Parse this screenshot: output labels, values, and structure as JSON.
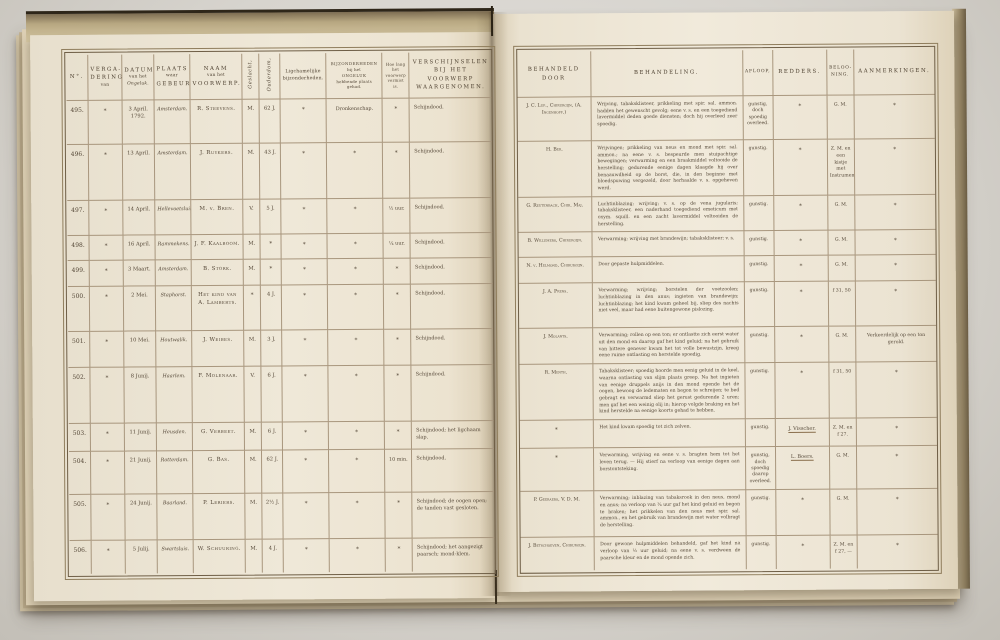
{
  "table": {
    "columns": [
      {
        "id": "no",
        "lines": [
          "N°."
        ]
      },
      {
        "id": "vergadering",
        "lines": [
          "VERGA-",
          "DERING",
          "van"
        ]
      },
      {
        "id": "datum",
        "lines": [
          "DATUM",
          "van het",
          "Ongeluk."
        ]
      },
      {
        "id": "plaats",
        "lines": [
          "PLAATS",
          "waar",
          "GEBEURD."
        ]
      },
      {
        "id": "naam",
        "lines": [
          "NAAM",
          "van het",
          "VOORWERP."
        ]
      },
      {
        "id": "geslacht",
        "lines": [
          "Geslacht,"
        ],
        "rotated": true
      },
      {
        "id": "ouderdom",
        "lines": [
          "Ouderdom,"
        ],
        "rotated": true
      },
      {
        "id": "ligchamelijke",
        "lines": [
          "Ligchamelijke",
          "bijzonderheden."
        ]
      },
      {
        "id": "bijzonderheden",
        "lines": [
          "BIJZONDERHEDEN",
          "bij het",
          "ONGELUK",
          "hebbende plaats",
          "gehad."
        ]
      },
      {
        "id": "hoelang",
        "lines": [
          "Hoe lang",
          "het",
          "voorwerp",
          "vermist",
          "is."
        ]
      },
      {
        "id": "verschijnselen",
        "lines": [
          "VERSCHIJNSELEN",
          "BIJ HET",
          "VOORWERP WAARGENOMEN."
        ]
      },
      {
        "id": "behandeld_door",
        "lines": [
          "BEHANDELD",
          "DOOR"
        ]
      },
      {
        "id": "behandeling",
        "lines": [
          "BEHANDELING."
        ]
      },
      {
        "id": "afloop",
        "lines": [
          "AFLOOP,"
        ]
      },
      {
        "id": "redders",
        "lines": [
          "REDDERS."
        ]
      },
      {
        "id": "belooning",
        "lines": [
          "BELOO-",
          "NING."
        ]
      },
      {
        "id": "aanmerkingen",
        "lines": [
          "AANMERKINGEN."
        ]
      }
    ],
    "rows": [
      {
        "no": "495.",
        "vergadering": "*",
        "datum": "3 April. 1792.",
        "plaats": "Amsterdam.",
        "naam": "R. Steevens.",
        "geslacht": "M.",
        "ouderdom": "62 J.",
        "ligchamelijke": "*",
        "bijzonderheden": "Dronkenschap.",
        "hoelang": "*",
        "verschijnselen": "Schijndood.",
        "behandeld_door": "J. C. Lup., Chirurgijn, (A. Ingenhoff.)",
        "behandeling": "Wrijving, tabaksklisteer, prikkeling met spir. sal. ammon. hadden het gewenscht gevolg; eene v. s. en een toegediend lavermiddel deden goede diensten; doch hij overleed zeer spoedig.",
        "afloop": "gunstig, doch spoedig overleed.",
        "redders": "*",
        "belooning": "G. M.",
        "aanmerkingen": "*"
      },
      {
        "no": "496.",
        "vergadering": "*",
        "datum": "13 April.",
        "plaats": "Amsterdam.",
        "naam": "J. Ruykers.",
        "geslacht": "M.",
        "ouderdom": "43 J.",
        "ligchamelijke": "*",
        "bijzonderheden": "*",
        "hoelang": "*",
        "verschijnselen": "Schijndood.",
        "behandeld_door": "H. Ber.",
        "behandeling": "Wrijvingen; prikkeling van neus en mond met spir. sal. ammon.; na eene v. s. bespeurde men stuipachtige bewegingen; verwarming en een braakmiddel voltooide de herstelling; gedurende eenige dagen klaagde hij over benaauwdheid op de borst, die, in den beginne met bloedspuwing vergezeld, door herhaalde v. s. opgeheven werd.",
        "afloop": "gunstig.",
        "redders": "*",
        "belooning": "Z. M. en een kistje met Instrumenten.",
        "aanmerkingen": "*"
      },
      {
        "no": "497.",
        "vergadering": "*",
        "datum": "14 April.",
        "plaats": "Hellevoetsluis.",
        "naam": "M. v. Bren.",
        "geslacht": "V.",
        "ouderdom": "5 J.",
        "ligchamelijke": "*",
        "bijzonderheden": "*",
        "hoelang": "½ uur.",
        "verschijnselen": "Schijndood.",
        "behandeld_door": "G. Reutenbach, Chir. Maj.",
        "behandeling": "Luchtinblazing; wrijving; v. s. op de vena jugularis; tabaksklisteer, een naderhand toegediend emeticum met oxym. squill. en een zacht lavermiddel voltooiden de herstelling.",
        "afloop": "gunstig.",
        "redders": "*",
        "belooning": "G. M.",
        "aanmerkingen": "*"
      },
      {
        "no": "498.",
        "vergadering": "*",
        "datum": "16 April.",
        "plaats": "Rammekens.",
        "naam": "J. F. Kaalboom.",
        "geslacht": "M.",
        "ouderdom": "*",
        "ligchamelijke": "*",
        "bijzonderheden": "*",
        "hoelang": "¼ uur.",
        "verschijnselen": "Schijndood.",
        "behandeld_door": "B. Willemers, Chirurgijn.",
        "behandeling": "Verwarming; wrijving met brandewijn; tabaksklisteer; v. s.",
        "afloop": "gunstig.",
        "redders": "*",
        "belooning": "G. M.",
        "aanmerkingen": "*"
      },
      {
        "no": "499.",
        "vergadering": "*",
        "datum": "3 Maart.",
        "plaats": "Amsterdam.",
        "naam": "B. Stork.",
        "geslacht": "M.",
        "ouderdom": "*",
        "ligchamelijke": "*",
        "bijzonderheden": "*",
        "hoelang": "*",
        "verschijnselen": "Schijndood.",
        "behandeld_door": "N. v. Helmond, Chirurgijn.",
        "behandeling": "Door gepaste hulpmiddelen.",
        "afloop": "gunstig.",
        "redders": "*",
        "belooning": "G. M.",
        "aanmerkingen": "*"
      },
      {
        "no": "500.",
        "vergadering": "*",
        "datum": "2 Mei.",
        "plaats": "Staphorst.",
        "naam": "Het kind van A. Lamberts.",
        "geslacht": "*",
        "ouderdom": "4 J.",
        "ligchamelijke": "*",
        "bijzonderheden": "*",
        "hoelang": "*",
        "verschijnselen": "Schijndood.",
        "behandeld_door": "J. A. Prens.",
        "behandeling": "Verwarming; wrijving; borstelen der voetzoolen; luchtinblazing in den anus; ingieten van brandewijn; luchtinblazing; het kind kwam geheel bij, sliep des nachts niet veel, maar had eene buitengewone pislozing.",
        "afloop": "gunstig.",
        "redders": "*",
        "belooning": "f 31, 50",
        "aanmerkingen": "*"
      },
      {
        "no": "501.",
        "vergadering": "*",
        "datum": "10 Mei.",
        "plaats": "Houtwalik.",
        "naam": "J. Weibes.",
        "geslacht": "M.",
        "ouderdom": "3 J.",
        "ligchamelijke": "*",
        "bijzonderheden": "*",
        "hoelang": "*",
        "verschijnselen": "Schijndood.",
        "behandeld_door": "J. Molants.",
        "behandeling": "Verwarming; rollen op een ton; er ontlastte zich eerst water uit den mond en daarop gaf het kind geluid; na het gebruik van bittere genever kwam het tot volle bewustzijn, kreeg eene ruime ontlasting en herstelde spoedig.",
        "afloop": "gunstig.",
        "redders": "*",
        "belooning": "G. M.",
        "aanmerkingen": "Verkeerdelijk op een ton gerold."
      },
      {
        "no": "502.",
        "vergadering": "*",
        "datum": "8 Junij.",
        "plaats": "Haarlem.",
        "naam": "F. Molenaar.",
        "geslacht": "V.",
        "ouderdom": "6 J.",
        "ligchamelijke": "*",
        "bijzonderheden": "*",
        "hoelang": "*",
        "verschijnselen": "Schijndood.",
        "behandeld_door": "R. Menth.",
        "behandeling": "Tabaksklisteer; spoedig hoorde men eenig geluid in de keel, waarna ontlasting van slijm plaats greep. Na het ingieten van eenige druppels anijs in den mond opende het de oogen, bewoog de ledematen en begon te schreijen; te bed gebragt en verwarmd sliep het gerust gedurende 2 uren; men gaf het een weinig olij in; hierop volgde braking en het kind herstelde na eenige koorts gehad te hebben.",
        "afloop": "gunstig.",
        "redders": "*",
        "belooning": "f 31, 50",
        "aanmerkingen": "*"
      },
      {
        "no": "503.",
        "vergadering": "*",
        "datum": "11 Junij.",
        "plaats": "Heusden.",
        "naam": "G. Verbeet.",
        "geslacht": "M.",
        "ouderdom": "6 J.",
        "ligchamelijke": "*",
        "bijzonderheden": "*",
        "hoelang": "*",
        "verschijnselen": "Schijndood; het ligchaam slap.",
        "behandeld_door": "*",
        "behandeling": "Het kind kwam spoedig tot zich zelven.",
        "afloop": "gunstig.",
        "redders": "J. Visscher.",
        "belooning": "Z. M. en f 27.",
        "aanmerkingen": "*"
      },
      {
        "no": "504.",
        "vergadering": "*",
        "datum": "21 Junij.",
        "plaats": "Rotterdam.",
        "naam": "G. Bas.",
        "geslacht": "M.",
        "ouderdom": "62 J.",
        "ligchamelijke": "*",
        "bijzonderheden": "*",
        "hoelang": "10 min.",
        "verschijnselen": "Schijndood.",
        "behandeld_door": "*",
        "behandeling": "Verwarming, wrijving en eene v. s. bragten hem tot het leven terug. — Hij stierf na verloop van eenige dagen aan borstontsteking.",
        "afloop": "gunstig, doch spoedig daarop overleed.",
        "redders": "L. Boers.",
        "belooning": "G. M.",
        "aanmerkingen": "*"
      },
      {
        "no": "505.",
        "vergadering": "*",
        "datum": "24 Junij.",
        "plaats": "Baarland.",
        "naam": "P. Leriers.",
        "geslacht": "M.",
        "ouderdom": "2½ J.",
        "ligchamelijke": "*",
        "bijzonderheden": "*",
        "hoelang": "*",
        "verschijnselen": "Schijndood; de oogen open; de tanden vast gesloten.",
        "behandeld_door": "P. Geeraers, V. D. M.",
        "behandeling": "Verwarming; inblazing van tabaksrook in den neus, mond en anus; na verloop van ¾ uur gaf het kind geluid en begon te braken; het prikkelen van den neus met spir. sal. ammon., en het gebruik van brandewijn met water volbragt de herstelling.",
        "afloop": "gunstig.",
        "redders": "*",
        "belooning": "G. M.",
        "aanmerkingen": "*"
      },
      {
        "no": "506.",
        "vergadering": "*",
        "datum": "5 Julij.",
        "plaats": "Swartsluis.",
        "naam": "W. Schuuring.",
        "geslacht": "M.",
        "ouderdom": "4 J.",
        "ligchamelijke": "*",
        "bijzonderheden": "*",
        "hoelang": "*",
        "verschijnselen": "Schijndood; het aangezigt paarsch; mond-klem.",
        "behandeld_door": "J. Betschoeven, Chirurgijn.",
        "behandeling": "Door gewone hulpmiddelen behandeld, gaf het kind na verloop van ½ uur geluid; na eene v. s. verdween de paarsche kleur en de mond opende zich.",
        "afloop": "gunstig.",
        "redders": "*",
        "belooning": "Z. M. en f 27, —",
        "aanmerkingen": "*"
      }
    ]
  },
  "colors": {
    "paper": "#efe8d8",
    "rule_line": "#a8967d",
    "frame_line": "#6e5e46",
    "ink": "#554838",
    "background": "#d7d4ce"
  }
}
